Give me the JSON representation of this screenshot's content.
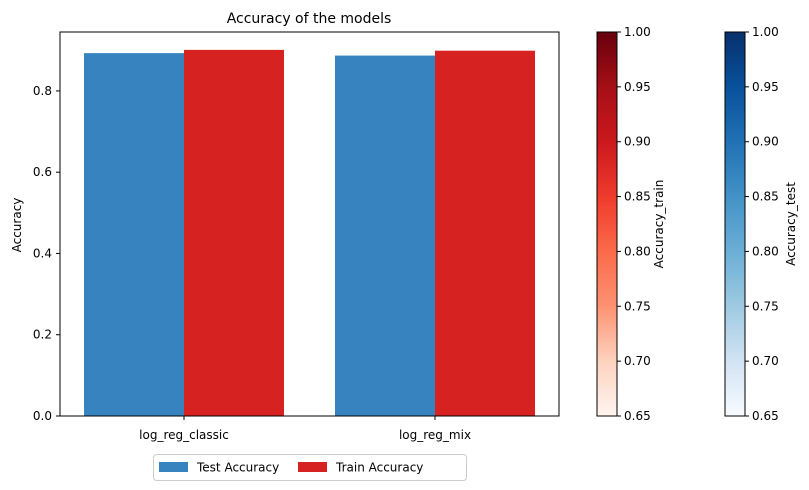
{
  "chart_data": {
    "type": "bar",
    "title": "Accuracy of the models",
    "xlabel": "",
    "ylabel": "Accuracy",
    "ylim": [
      0,
      0.945
    ],
    "yticks": [
      "0.0",
      "0.2",
      "0.4",
      "0.6",
      "0.8"
    ],
    "yticks_values": [
      0,
      0.2,
      0.4,
      0.6,
      0.8
    ],
    "categories": [
      "log_reg_classic",
      "log_reg_mix"
    ],
    "grid": false,
    "legend_placement": "bottom-center",
    "series": [
      {
        "name": "Test Accuracy",
        "values": [
          0.893,
          0.887
        ],
        "color": "#3683bf"
      },
      {
        "name": "Train Accuracy",
        "values": [
          0.901,
          0.899
        ],
        "color": "#d62221"
      }
    ],
    "colorbars": [
      {
        "label": "Accuracy_train",
        "colormap": "Reds",
        "range": [
          0.65,
          1.0
        ],
        "ticks": [
          "0.65",
          "0.70",
          "0.75",
          "0.80",
          "0.85",
          "0.90",
          "0.95",
          "1.00"
        ],
        "tick_values": [
          0.65,
          0.7,
          0.75,
          0.8,
          0.85,
          0.9,
          0.95,
          1.0
        ],
        "colors": [
          "#fff5f0",
          "#fdd2bf",
          "#fc9272",
          "#fb6a4a",
          "#ef3b2c",
          "#cb181d",
          "#a50f15",
          "#67000d"
        ]
      },
      {
        "label": "Accuracy_test",
        "colormap": "Blues",
        "range": [
          0.65,
          1.0
        ],
        "ticks": [
          "0.65",
          "0.70",
          "0.75",
          "0.80",
          "0.85",
          "0.90",
          "0.95",
          "1.00"
        ],
        "tick_values": [
          0.65,
          0.7,
          0.75,
          0.8,
          0.85,
          0.9,
          0.95,
          1.0
        ],
        "colors": [
          "#f7fbff",
          "#d2e3f3",
          "#9ecae1",
          "#6baed6",
          "#4292c6",
          "#2171b5",
          "#08519c",
          "#08306b"
        ]
      }
    ]
  }
}
